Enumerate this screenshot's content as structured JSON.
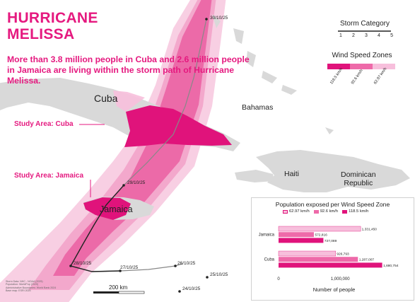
{
  "title": [
    "HURRICANE",
    "MELISSA"
  ],
  "subtitle": "More than 3.8 million people in Cuba and 2.6 million people in Jamaica are living within the storm path of Hurricane Melissa.",
  "places": {
    "cuba": "Cuba",
    "bahamas": "Bahamas",
    "haiti": "Haiti",
    "dominican_republic": [
      "Dominican",
      "Republic"
    ],
    "jamaica": "Jamaica"
  },
  "study_areas": {
    "cuba": "Study Area: Cuba",
    "jamaica": "Study Area: Jamaica"
  },
  "track_dates": [
    "30/10/25",
    "29/10/25",
    "28/10/25",
    "27/10/25",
    "26/10/25",
    "25/10/25",
    "24/10/25"
  ],
  "storm_category_legend": {
    "title": "Storm Category",
    "categories": [
      "1",
      "2",
      "3",
      "4",
      "5"
    ]
  },
  "wind_speed_legend": {
    "title": "Wind Speed Zones",
    "zones": [
      {
        "label": "118.5 km/h",
        "color": "#e0137b"
      },
      {
        "label": "92.6 km/h",
        "color": "#ee6aa9"
      },
      {
        "label": "62.97 km/h",
        "color": "#f7bfdc"
      }
    ]
  },
  "scale_bar": "200 km",
  "footnote": [
    "Storm Data: NHC - NOAA (2025)",
    "Population: WorldPop (2020)",
    "Administrative Boundaries: World Bank 2024",
    "Base map: ESRI 2025"
  ],
  "colors": {
    "accent": "#e5197f",
    "zone_high": "#e0137b",
    "zone_mid": "#ee6aa9",
    "zone_low": "#f7bfdc",
    "land": "#d9d9d9",
    "track": "#888888"
  },
  "chart_data": {
    "type": "bar",
    "orientation": "horizontal",
    "title": "Population exposed per Wind Speed Zone",
    "categories": [
      "Jamaica",
      "Cuba"
    ],
    "series": [
      {
        "name": "62.97 km/h",
        "color": "#f7bfdc",
        "values": [
          1331450,
          926793
        ]
      },
      {
        "name": "92.6 km/h",
        "color": "#ee6aa9",
        "values": [
          572816,
          1287007
        ]
      },
      {
        "name": "118.5 km/h",
        "color": "#e0137b",
        "values": [
          727089,
          1680754
        ]
      }
    ],
    "value_labels": [
      [
        "1,331,450",
        "572,816",
        "727,089"
      ],
      [
        "926,793",
        "1,287,007",
        "1,680,754"
      ]
    ],
    "xlabel": "Number of people",
    "xticks": [
      0,
      1000000
    ],
    "xtick_labels": [
      "0",
      "1,000,000"
    ],
    "xlim": [
      0,
      1800000
    ],
    "grid": false,
    "legend_position": "top"
  }
}
